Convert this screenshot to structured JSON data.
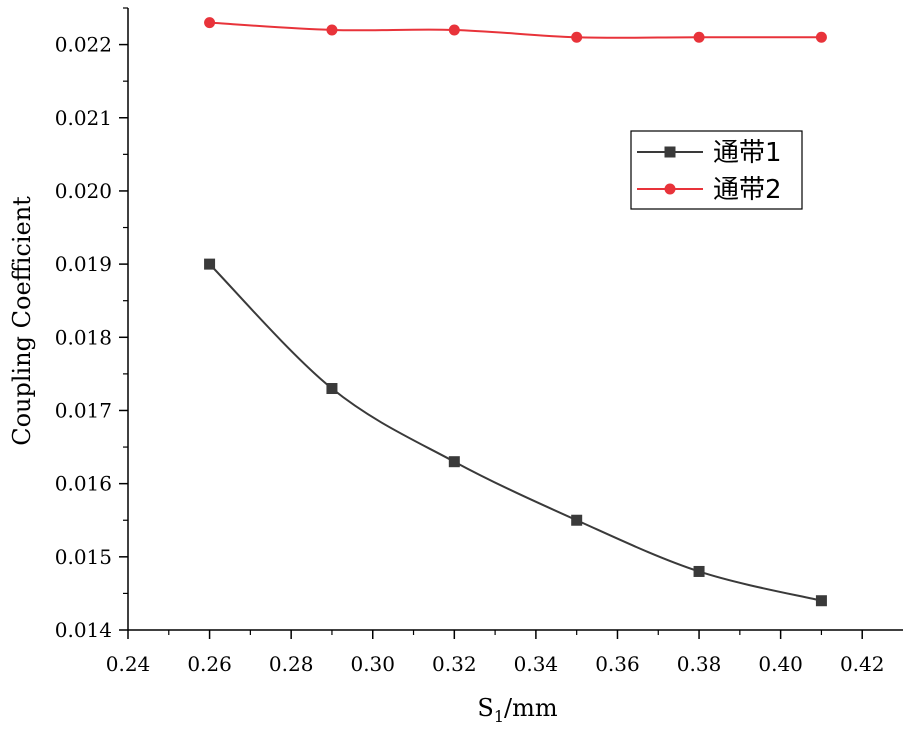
{
  "chart_data": {
    "type": "line",
    "x": [
      0.26,
      0.29,
      0.32,
      0.35,
      0.38,
      0.41
    ],
    "series": [
      {
        "name": "通带1",
        "values": [
          0.019,
          0.0173,
          0.0163,
          0.0155,
          0.0148,
          0.0144
        ],
        "color": "#3a3a3a",
        "marker": "square"
      },
      {
        "name": "通带2",
        "values": [
          0.0223,
          0.0222,
          0.0222,
          0.0221,
          0.0221,
          0.0221
        ],
        "color": "#e8333a",
        "marker": "circle"
      }
    ],
    "xlabel": "S1/mm",
    "xlabel_main": "S",
    "xlabel_sub": "1",
    "xlabel_suffix": "/mm",
    "ylabel": "Coupling Coefficient",
    "xlim": [
      0.24,
      0.43
    ],
    "ylim": [
      0.014,
      0.0225
    ],
    "xticks": [
      0.24,
      0.26,
      0.28,
      0.3,
      0.32,
      0.34,
      0.36,
      0.38,
      0.4,
      0.42
    ],
    "xtick_labels": [
      "0.24",
      "0.26",
      "0.28",
      "0.30",
      "0.32",
      "0.34",
      "0.36",
      "0.38",
      "0.40",
      "0.42"
    ],
    "yticks": [
      0.014,
      0.015,
      0.016,
      0.017,
      0.018,
      0.019,
      0.02,
      0.021,
      0.022
    ],
    "ytick_labels": [
      "0.014",
      "0.015",
      "0.016",
      "0.017",
      "0.018",
      "0.019",
      "0.020",
      "0.021",
      "0.022"
    ],
    "grid": false,
    "legend_position": "top-right"
  }
}
